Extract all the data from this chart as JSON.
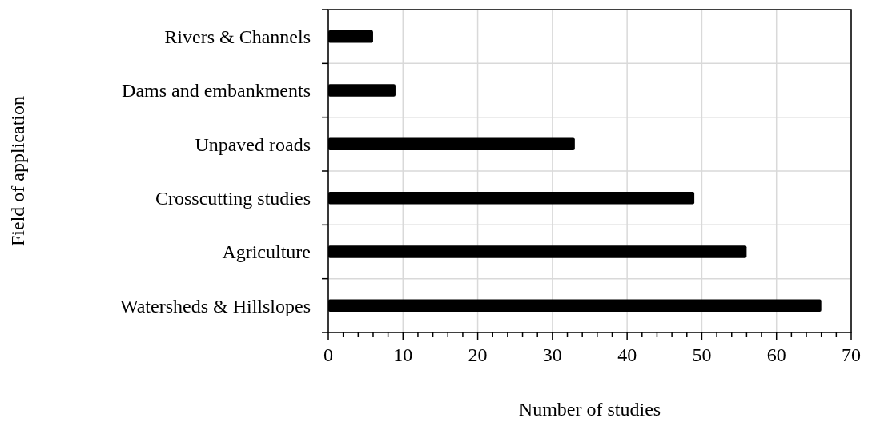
{
  "chart_data": {
    "type": "bar",
    "orientation": "horizontal",
    "xlabel": "Number of studies",
    "ylabel": "Field of application",
    "categories": [
      "Rivers & Channels",
      "Dams and embankments",
      "Unpaved roads",
      "Crosscutting studies",
      "Agriculture",
      "Watersheds & Hillslopes"
    ],
    "values": [
      6,
      9,
      33,
      49,
      56,
      66
    ],
    "color": "#000000",
    "xlim": [
      0,
      70
    ],
    "xticks": [
      0,
      {
        "value": 2,
        "label": null
      },
      {
        "value": 4,
        "label": null
      },
      {
        "value": 6,
        "label": null
      },
      {
        "value": 8,
        "label": null
      },
      10,
      {
        "value": 12,
        "label": null
      },
      {
        "value": 14,
        "label": null
      },
      {
        "value": 16,
        "label": null
      },
      {
        "value": 18,
        "label": null
      },
      20,
      {
        "value": 22,
        "label": null
      },
      {
        "value": 24,
        "label": null
      },
      {
        "value": 26,
        "label": null
      },
      {
        "value": 28,
        "label": null
      },
      30,
      {
        "value": 32,
        "label": null
      },
      {
        "value": 34,
        "label": null
      },
      {
        "value": 36,
        "label": null
      },
      {
        "value": 38,
        "label": null
      },
      40,
      {
        "value": 42,
        "label": null
      },
      {
        "value": 44,
        "label": null
      },
      {
        "value": 46,
        "label": null
      },
      {
        "value": 48,
        "label": null
      },
      50,
      {
        "value": 52,
        "label": null
      },
      {
        "value": 54,
        "label": null
      },
      {
        "value": 56,
        "label": null
      },
      {
        "value": 58,
        "label": null
      },
      60,
      {
        "value": 62,
        "label": null
      },
      {
        "value": 64,
        "label": null
      },
      {
        "value": 66,
        "label": null
      },
      {
        "value": 68,
        "label": null
      },
      70
    ],
    "grid": true
  }
}
